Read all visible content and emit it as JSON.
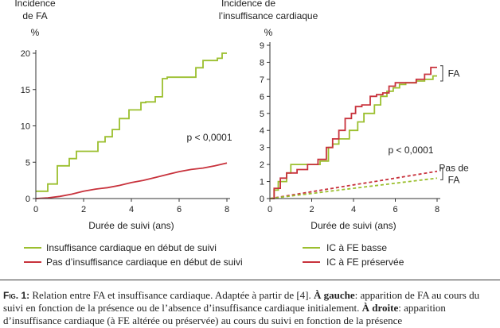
{
  "colors": {
    "green": "#9bbf2e",
    "red": "#c8323c",
    "axis": "#333333"
  },
  "chart_data": [
    {
      "type": "line",
      "ylabel_lines": [
        "Incidence",
        "de FA"
      ],
      "yunit": "%",
      "xlabel": "Durée de suivi (ans)",
      "xlim": [
        0,
        8
      ],
      "ylim": [
        0,
        20
      ],
      "xticks": [
        0,
        2,
        4,
        6,
        8
      ],
      "yticks": [
        0,
        5,
        10,
        15,
        20
      ],
      "annotation": "p < 0,0001",
      "legend_position": "bottom",
      "series": [
        {
          "name": "Insuffisance cardiaque en début de suivi",
          "color": "green",
          "style": "step",
          "x": [
            0,
            0.5,
            0.5,
            0.9,
            0.9,
            1.4,
            1.4,
            1.7,
            1.7,
            2.6,
            2.6,
            2.9,
            2.9,
            3.2,
            3.2,
            3.5,
            3.5,
            3.9,
            3.9,
            4.4,
            4.4,
            4.6,
            4.6,
            5.0,
            5.0,
            5.3,
            5.3,
            5.5,
            5.5,
            6.7,
            6.7,
            7.0,
            7.0,
            7.6,
            7.6,
            7.8,
            7.8,
            8.0
          ],
          "y": [
            1.0,
            1.0,
            2.0,
            2.0,
            4.5,
            4.5,
            5.5,
            5.5,
            6.5,
            6.5,
            7.8,
            7.8,
            8.5,
            8.5,
            9.5,
            9.5,
            11.0,
            11.0,
            12.2,
            12.2,
            13.2,
            13.2,
            13.3,
            13.3,
            14.0,
            14.0,
            16.5,
            16.5,
            16.7,
            16.7,
            18.0,
            18.0,
            19.0,
            19.0,
            19.3,
            19.3,
            20.0,
            20.0
          ]
        },
        {
          "name": "Pas d’insuffisance cardiaque en début de suivi",
          "color": "red",
          "style": "line",
          "x": [
            0,
            0.5,
            1,
            1.5,
            2,
            2.5,
            3,
            3.5,
            4,
            4.5,
            5,
            5.5,
            6,
            6.5,
            7,
            7.5,
            8
          ],
          "y": [
            0,
            0.1,
            0.3,
            0.6,
            1.0,
            1.3,
            1.5,
            1.8,
            2.2,
            2.5,
            2.9,
            3.3,
            3.7,
            4.0,
            4.2,
            4.5,
            4.9
          ]
        }
      ]
    },
    {
      "type": "line",
      "ylabel_lines": [
        "Incidence de",
        "l’insuffisance cardiaque"
      ],
      "yunit": "%",
      "xlabel": "Durée de suivi (ans)",
      "xlim": [
        0,
        8
      ],
      "ylim": [
        0,
        9
      ],
      "xticks": [
        0,
        2,
        4,
        6,
        8
      ],
      "yticks": [
        0,
        1,
        2,
        3,
        4,
        5,
        6,
        7,
        8,
        9
      ],
      "annotation": "p < 0,0001",
      "bracket_labels": [
        {
          "text_lines": [
            "FA"
          ],
          "y_range": [
            6.9,
            7.8
          ]
        },
        {
          "text_lines": [
            "Pas de",
            "FA"
          ],
          "y_range": [
            1.1,
            1.8
          ]
        }
      ],
      "legend_position": "bottom",
      "series": [
        {
          "name": "IC à FE basse",
          "color": "green",
          "style": "step",
          "x": [
            0,
            0.2,
            0.2,
            0.4,
            0.4,
            0.8,
            0.8,
            1.0,
            1.0,
            1.5,
            1.5,
            1.8,
            1.8,
            2.4,
            2.4,
            2.8,
            2.8,
            3.0,
            3.0,
            3.3,
            3.3,
            3.8,
            3.8,
            4.2,
            4.2,
            4.5,
            4.5,
            5.0,
            5.0,
            5.3,
            5.3,
            5.6,
            5.6,
            5.9,
            5.9,
            6.2,
            6.2,
            6.5,
            6.5,
            7.0,
            7.0,
            7.4,
            7.4,
            7.8,
            7.8,
            8.0
          ],
          "y": [
            0,
            0,
            0.5,
            0.5,
            1.0,
            1.0,
            1.5,
            1.5,
            2.0,
            2.0,
            2.0,
            2.0,
            2.0,
            2.0,
            2.2,
            2.2,
            3.0,
            3.0,
            3.2,
            3.2,
            3.5,
            3.5,
            4.0,
            4.0,
            4.5,
            4.5,
            5.0,
            5.0,
            5.5,
            5.5,
            6.0,
            6.0,
            6.3,
            6.3,
            6.5,
            6.5,
            6.7,
            6.7,
            6.8,
            6.8,
            6.9,
            6.9,
            7.0,
            7.0,
            7.2,
            7.2
          ]
        },
        {
          "name": "IC à FE préservée",
          "color": "red",
          "style": "step",
          "x": [
            0,
            0.2,
            0.2,
            0.5,
            0.5,
            0.8,
            0.8,
            1.3,
            1.3,
            1.8,
            1.8,
            2.3,
            2.3,
            2.7,
            2.7,
            3.0,
            3.0,
            3.3,
            3.3,
            3.6,
            3.6,
            3.9,
            3.9,
            4.1,
            4.1,
            4.4,
            4.4,
            4.8,
            4.8,
            5.1,
            5.1,
            5.4,
            5.4,
            5.7,
            5.7,
            6.0,
            6.0,
            6.5,
            6.5,
            7.0,
            7.0,
            7.4,
            7.4,
            7.7,
            7.7,
            8.0
          ],
          "y": [
            0,
            0,
            0.6,
            0.6,
            1.2,
            1.2,
            1.5,
            1.5,
            1.7,
            1.7,
            2.0,
            2.0,
            2.3,
            2.3,
            3.0,
            3.0,
            3.5,
            3.5,
            4.0,
            4.0,
            4.7,
            4.7,
            5.0,
            5.0,
            5.4,
            5.4,
            5.5,
            5.5,
            6.0,
            6.0,
            6.1,
            6.1,
            6.2,
            6.2,
            6.6,
            6.6,
            6.8,
            6.8,
            6.8,
            6.8,
            7.0,
            7.0,
            7.3,
            7.3,
            7.7,
            7.7
          ]
        },
        {
          "name": "IC à FE préservée — pas de FA",
          "color": "red",
          "style": "dashed",
          "x": [
            0,
            1,
            2,
            3,
            4,
            5,
            6,
            7,
            8
          ],
          "y": [
            0,
            0.2,
            0.4,
            0.6,
            0.8,
            1.0,
            1.2,
            1.4,
            1.6
          ]
        },
        {
          "name": "IC à FE basse — pas de FA",
          "color": "green",
          "style": "dashed",
          "x": [
            0,
            1,
            2,
            3,
            4,
            5,
            6,
            7,
            8
          ],
          "y": [
            0,
            0.15,
            0.3,
            0.45,
            0.6,
            0.75,
            0.9,
            1.05,
            1.2
          ]
        }
      ]
    }
  ],
  "legend_left": [
    "Insuffisance cardiaque en début de suivi",
    "Pas d’insuffisance cardiaque en début de suivi"
  ],
  "legend_right": [
    "IC à FE basse",
    "IC à FE préservée"
  ],
  "caption": {
    "fig_number": "Fig. 1:",
    "line1": " Relation entre FA et insuffisance cardiaque. Adaptée à partir de [4]. ",
    "left_label": "À gauche",
    "line2": ": apparition de FA au cours du suivi en fonction de la présence ou de l’absence d’insuffisance cardiaque initialement. ",
    "right_label": "À droite",
    "line3": ": apparition d’insuffisance cardiaque (à FE altérée ou préservée) au cours du suivi en fonction de la présence"
  }
}
